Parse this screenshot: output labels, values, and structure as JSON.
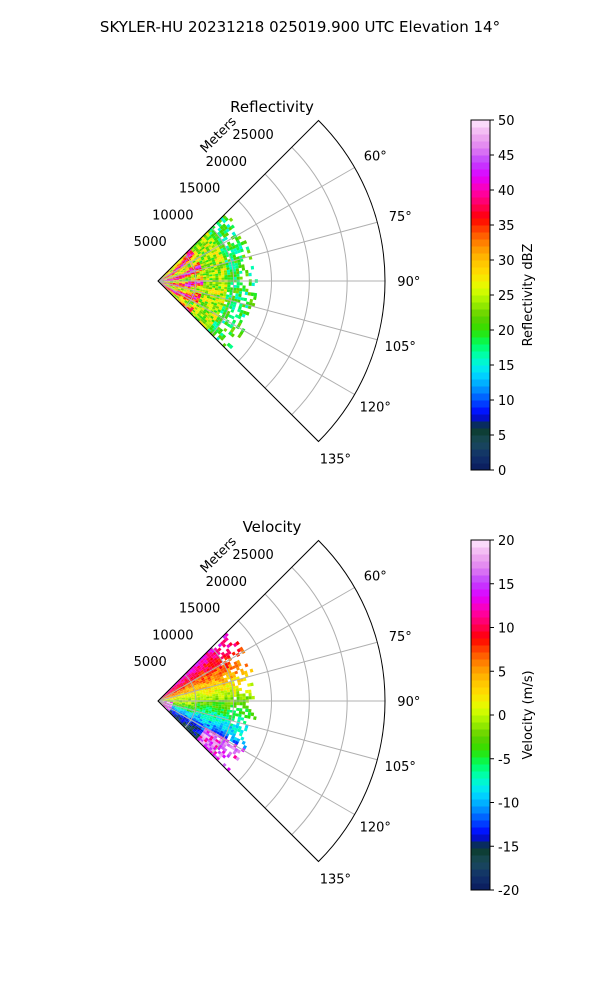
{
  "suptitle": "SKYLER-HU  20231218  025019.900 UTC Elevation 14°",
  "chart_data": [
    {
      "type": "heatmap",
      "subtype": "polar-sector (radar PPI)",
      "title": "Reflectivity",
      "radial_label": "Meters",
      "radial_ticks": [
        5000,
        10000,
        15000,
        20000,
        25000
      ],
      "radial_range": [
        0,
        30000
      ],
      "azimuth_range_deg": [
        45,
        135
      ],
      "azimuth_ticks": [
        "60°",
        "75°",
        "90°",
        "105°",
        "120°",
        "135°"
      ],
      "colorbar_label": "Reflectivity dBZ",
      "colorbar_range": [
        0,
        50
      ],
      "colorbar_ticks": [
        0,
        5,
        10,
        15,
        20,
        25,
        30,
        35,
        40,
        45,
        50
      ],
      "data_extent_m": 13000,
      "summary": "High reflectivity (30–45 dBZ, red/magenta) within ~6000 m; mostly 15–25 dBZ (green/yellow) out to ~13000 m"
    },
    {
      "type": "heatmap",
      "subtype": "polar-sector (radar PPI)",
      "title": "Velocity",
      "radial_label": "Meters",
      "radial_ticks": [
        5000,
        10000,
        15000,
        20000,
        25000
      ],
      "radial_range": [
        0,
        30000
      ],
      "azimuth_range_deg": [
        45,
        135
      ],
      "azimuth_ticks": [
        "60°",
        "75°",
        "90°",
        "105°",
        "120°",
        "135°"
      ],
      "colorbar_label": "Velocity (m/s)",
      "colorbar_range": [
        -20,
        20
      ],
      "colorbar_ticks": [
        -20,
        -15,
        -10,
        -5,
        0,
        5,
        10,
        15,
        20
      ],
      "data_extent_m": 13000,
      "summary": "Positive velocities (+10 to +15 m/s) in the northern azimuths (45°–80°), near 0 around 90°, negative (-5 to -12 m/s) toward 105°–120°, with +15 m/s patches near 125°–130°"
    }
  ],
  "colors": {
    "reflectivity_scale": [
      "#0a1a5c",
      "#10306a",
      "#1a4a5a",
      "#0a3a2a",
      "#0000ff",
      "#0050ff",
      "#00a0ff",
      "#00e0ff",
      "#00ffc0",
      "#00ff60",
      "#30e000",
      "#60d000",
      "#a0f000",
      "#e0ff00",
      "#ffe000",
      "#ffc000",
      "#ff9000",
      "#ff5000",
      "#ff0000",
      "#ff0060",
      "#ff00b0",
      "#e000ff",
      "#c040ff",
      "#e080f0",
      "#f0b0f0",
      "#ffe8ff"
    ],
    "velocity_scale": [
      "#0a1a5c",
      "#10306a",
      "#1a4a5a",
      "#0a3a2a",
      "#0000ff",
      "#0050ff",
      "#00a0ff",
      "#00e0ff",
      "#00ffc0",
      "#00ff60",
      "#30e000",
      "#60d000",
      "#a0f000",
      "#e0ff00",
      "#ffe000",
      "#ffc000",
      "#ff9000",
      "#ff5000",
      "#ff0000",
      "#ff0060",
      "#ff00b0",
      "#e000ff",
      "#c040ff",
      "#e080f0",
      "#f0b0f0",
      "#ffe8ff"
    ],
    "grid": "#b0b0b0",
    "axis": "#000000"
  }
}
